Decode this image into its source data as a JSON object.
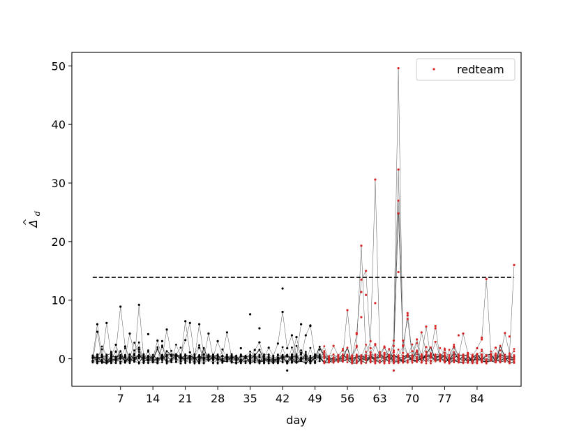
{
  "chart_data": {
    "type": "scatter",
    "title": "",
    "xlabel": "day",
    "ylabel_base": "Δ",
    "ylabel_sub": "d",
    "xlim": [
      -3.5,
      93.5
    ],
    "ylim": [
      -4.7,
      52.3
    ],
    "xticks": [
      7,
      14,
      21,
      28,
      35,
      42,
      49,
      56,
      63,
      70,
      77,
      84
    ],
    "yticks": [
      0,
      10,
      20,
      30,
      40,
      50
    ],
    "threshold": {
      "value": 13.9,
      "x_range": [
        1,
        92
      ],
      "style": "dashed"
    },
    "red_from_day": 51,
    "days_last": 92,
    "legend": {
      "label": "redteam",
      "position": "top-right",
      "marker_color": "#d62728"
    },
    "colors": {
      "normal": "#000000",
      "redteam": "#d62728",
      "trace": "#555555"
    },
    "spikes": [
      {
        "name": "trace-1",
        "points": [
          [
            1,
            0.2
          ],
          [
            2,
            5.9
          ],
          [
            3,
            0.4
          ],
          [
            4,
            -0.3
          ],
          [
            5,
            0.1
          ],
          [
            6,
            1.2
          ],
          [
            7,
            8.9
          ],
          [
            8,
            2.1
          ],
          [
            9,
            0.0
          ],
          [
            10,
            -0.5
          ],
          [
            11,
            9.2
          ],
          [
            12,
            0.3
          ]
        ]
      },
      {
        "name": "trace-2",
        "points": [
          [
            1,
            -0.4
          ],
          [
            2,
            4.6
          ],
          [
            3,
            -0.2
          ],
          [
            4,
            6.1
          ],
          [
            5,
            0.5
          ],
          [
            6,
            2.4
          ],
          [
            7,
            0.1
          ],
          [
            8,
            0.3
          ],
          [
            9,
            4.3
          ],
          [
            10,
            0.8
          ],
          [
            11,
            1.6
          ],
          [
            12,
            -0.6
          ]
        ]
      },
      {
        "name": "trace-3",
        "points": [
          [
            14,
            0.2
          ],
          [
            15,
            3.1
          ],
          [
            16,
            0.1
          ],
          [
            17,
            5.0
          ],
          [
            18,
            0.6
          ],
          [
            19,
            0.0
          ],
          [
            20,
            -0.4
          ],
          [
            21,
            6.4
          ],
          [
            22,
            1.1
          ],
          [
            23,
            0.0
          ],
          [
            24,
            5.9
          ],
          [
            25,
            0.7
          ]
        ]
      },
      {
        "name": "trace-4",
        "points": [
          [
            20,
            0.5
          ],
          [
            21,
            3.2
          ],
          [
            22,
            6.1
          ],
          [
            23,
            0.2
          ],
          [
            24,
            1.9
          ],
          [
            25,
            0.0
          ],
          [
            26,
            4.3
          ],
          [
            27,
            0.2
          ],
          [
            28,
            3.0
          ],
          [
            29,
            0.5
          ],
          [
            30,
            4.5
          ],
          [
            31,
            0.2
          ]
        ]
      },
      {
        "name": "trace-5",
        "points": [
          [
            35,
            0.1
          ],
          [
            36,
            1.5
          ],
          [
            37,
            2.8
          ],
          [
            38,
            0.1
          ],
          [
            39,
            1.9
          ],
          [
            40,
            0.5
          ],
          [
            41,
            2.6
          ],
          [
            42,
            8.0
          ],
          [
            43,
            1.8
          ],
          [
            44,
            4.0
          ],
          [
            45,
            0.3
          ],
          [
            46,
            5.9
          ]
        ]
      },
      {
        "name": "trace-6",
        "points": [
          [
            44,
            0.2
          ],
          [
            45,
            3.7
          ],
          [
            46,
            0.0
          ],
          [
            47,
            4.0
          ],
          [
            48,
            5.7
          ],
          [
            49,
            0.4
          ],
          [
            50,
            0.2
          ],
          [
            51,
            1.1
          ],
          [
            52,
            0.3
          ],
          [
            53,
            2.2
          ],
          [
            54,
            0.6
          ],
          [
            55,
            1.4
          ]
        ]
      },
      {
        "name": "trace-7",
        "points": [
          [
            55,
            0.3
          ],
          [
            56,
            8.3
          ],
          [
            57,
            0.5
          ],
          [
            58,
            2.2
          ],
          [
            59,
            19.3
          ],
          [
            60,
            0.6
          ],
          [
            61,
            3.0
          ],
          [
            62,
            30.6
          ],
          [
            63,
            0.8
          ],
          [
            64,
            2.0
          ],
          [
            65,
            0.3
          ],
          [
            66,
            1.1
          ]
        ]
      },
      {
        "name": "trace-8",
        "points": [
          [
            57,
            0.2
          ],
          [
            58,
            4.2
          ],
          [
            59,
            13.5
          ],
          [
            60,
            15.0
          ],
          [
            61,
            1.1
          ],
          [
            62,
            2.5
          ],
          [
            63,
            0.4
          ],
          [
            64,
            1.0
          ],
          [
            65,
            0.2
          ],
          [
            66,
            3.1
          ],
          [
            67,
            49.6
          ],
          [
            68,
            0.5
          ]
        ]
      },
      {
        "name": "trace-9",
        "points": [
          [
            63,
            0.3
          ],
          [
            64,
            1.9
          ],
          [
            65,
            0.4
          ],
          [
            66,
            2.2
          ],
          [
            67,
            32.3
          ],
          [
            68,
            1.0
          ],
          [
            69,
            7.8
          ],
          [
            70,
            0.6
          ],
          [
            71,
            3.3
          ],
          [
            72,
            0.4
          ],
          [
            73,
            5.5
          ],
          [
            74,
            0.2
          ]
        ]
      },
      {
        "name": "trace-10",
        "points": [
          [
            65,
            0.1
          ],
          [
            66,
            1.4
          ],
          [
            67,
            27.0
          ],
          [
            68,
            3.1
          ],
          [
            69,
            0.7
          ],
          [
            70,
            1.3
          ],
          [
            71,
            0.1
          ],
          [
            72,
            4.5
          ],
          [
            73,
            1.2
          ],
          [
            74,
            0.3
          ],
          [
            75,
            2.9
          ],
          [
            76,
            0.4
          ]
        ]
      },
      {
        "name": "trace-11",
        "points": [
          [
            66,
            0.2
          ],
          [
            67,
            24.8
          ],
          [
            68,
            2.3
          ],
          [
            69,
            6.8
          ],
          [
            70,
            0.4
          ],
          [
            71,
            1.2
          ],
          [
            72,
            0.2
          ],
          [
            73,
            2.0
          ],
          [
            74,
            0.9
          ],
          [
            75,
            5.6
          ],
          [
            76,
            0.1
          ],
          [
            77,
            1.5
          ]
        ]
      },
      {
        "name": "trace-12",
        "points": [
          [
            77,
            1.0
          ],
          [
            78,
            0.6
          ],
          [
            79,
            2.1
          ],
          [
            80,
            0.3
          ],
          [
            81,
            4.3
          ],
          [
            82,
            1.0
          ],
          [
            83,
            0.5
          ],
          [
            84,
            1.8
          ],
          [
            85,
            3.3
          ],
          [
            86,
            13.6
          ],
          [
            87,
            0.8
          ],
          [
            88,
            1.9
          ],
          [
            89,
            0.3
          ],
          [
            90,
            4.4
          ],
          [
            91,
            0.9
          ],
          [
            92,
            16.0
          ]
        ]
      }
    ],
    "outliers": [
      [
        13,
        4.2
      ],
      [
        16,
        3.0
      ],
      [
        33,
        1.8
      ],
      [
        35,
        7.6
      ],
      [
        37,
        5.2
      ],
      [
        42,
        12.0
      ],
      [
        43,
        -2.0
      ],
      [
        48,
        5.6
      ],
      [
        58,
        4.4
      ],
      [
        59,
        7.1
      ],
      [
        59,
        11.4
      ],
      [
        60,
        10.9
      ],
      [
        61,
        1.8
      ],
      [
        62,
        9.5
      ],
      [
        66,
        -2.0
      ],
      [
        67,
        14.8
      ],
      [
        69,
        7.4
      ],
      [
        75,
        5.2
      ],
      [
        80,
        4.0
      ],
      [
        85,
        3.6
      ],
      [
        91,
        3.8
      ]
    ]
  }
}
